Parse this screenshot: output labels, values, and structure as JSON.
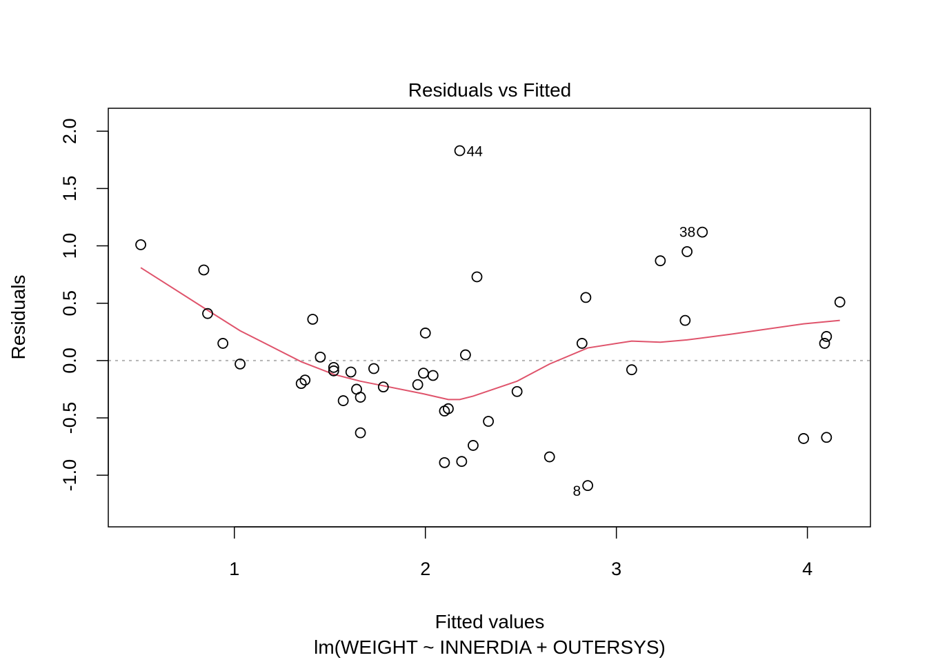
{
  "chart_data": {
    "type": "scatter",
    "title": "Residuals vs Fitted",
    "xlabel": "Fitted values",
    "subtitle": "lm(WEIGHT ~ INNERDIA + OUTERSYS)",
    "ylabel": "Residuals",
    "xlim": [
      0.34,
      4.33
    ],
    "ylim": [
      -1.45,
      2.2
    ],
    "xticks": [
      1,
      2,
      3,
      4
    ],
    "xtick_labels": [
      "1",
      "2",
      "3",
      "4"
    ],
    "yticks": [
      -1.0,
      -0.5,
      0.0,
      0.5,
      1.0,
      1.5,
      2.0
    ],
    "ytick_labels": [
      "-1.0",
      "-0.5",
      "0.0",
      "0.5",
      "1.0",
      "1.5",
      "2.0"
    ],
    "zero_line": 0,
    "points": [
      {
        "x": 0.51,
        "y": 1.01
      },
      {
        "x": 0.84,
        "y": 0.79
      },
      {
        "x": 0.86,
        "y": 0.41
      },
      {
        "x": 0.94,
        "y": 0.15
      },
      {
        "x": 1.03,
        "y": -0.03
      },
      {
        "x": 1.35,
        "y": -0.2
      },
      {
        "x": 1.37,
        "y": -0.17
      },
      {
        "x": 1.41,
        "y": 0.36
      },
      {
        "x": 1.45,
        "y": 0.03
      },
      {
        "x": 1.52,
        "y": -0.06
      },
      {
        "x": 1.52,
        "y": -0.09
      },
      {
        "x": 1.57,
        "y": -0.35
      },
      {
        "x": 1.61,
        "y": -0.1
      },
      {
        "x": 1.64,
        "y": -0.25
      },
      {
        "x": 1.66,
        "y": -0.32
      },
      {
        "x": 1.66,
        "y": -0.63
      },
      {
        "x": 1.73,
        "y": -0.07
      },
      {
        "x": 1.78,
        "y": -0.23
      },
      {
        "x": 1.96,
        "y": -0.21
      },
      {
        "x": 1.99,
        "y": -0.11
      },
      {
        "x": 2.0,
        "y": 0.24
      },
      {
        "x": 2.04,
        "y": -0.13
      },
      {
        "x": 2.1,
        "y": -0.44
      },
      {
        "x": 2.1,
        "y": -0.89
      },
      {
        "x": 2.12,
        "y": -0.42
      },
      {
        "x": 2.18,
        "y": 1.83,
        "label": "44"
      },
      {
        "x": 2.19,
        "y": -0.88
      },
      {
        "x": 2.21,
        "y": 0.05
      },
      {
        "x": 2.25,
        "y": -0.74
      },
      {
        "x": 2.27,
        "y": 0.73
      },
      {
        "x": 2.33,
        "y": -0.53
      },
      {
        "x": 2.48,
        "y": -0.27
      },
      {
        "x": 2.65,
        "y": -0.84
      },
      {
        "x": 2.82,
        "y": 0.15
      },
      {
        "x": 2.84,
        "y": 0.55
      },
      {
        "x": 2.85,
        "y": -1.09,
        "label": "8"
      },
      {
        "x": 3.08,
        "y": -0.08
      },
      {
        "x": 3.23,
        "y": 0.87
      },
      {
        "x": 3.36,
        "y": 0.35
      },
      {
        "x": 3.37,
        "y": 0.95
      },
      {
        "x": 3.45,
        "y": 1.12,
        "label": "38"
      },
      {
        "x": 3.98,
        "y": -0.68
      },
      {
        "x": 4.09,
        "y": 0.15
      },
      {
        "x": 4.1,
        "y": 0.21
      },
      {
        "x": 4.1,
        "y": -0.67
      },
      {
        "x": 4.17,
        "y": 0.51
      }
    ],
    "smoother": {
      "color": "#DF536B",
      "x": [
        0.51,
        0.84,
        1.03,
        1.35,
        1.52,
        1.66,
        1.78,
        1.99,
        2.12,
        2.18,
        2.25,
        2.48,
        2.65,
        2.85,
        3.08,
        3.23,
        3.37,
        3.6,
        3.98,
        4.17
      ],
      "y": [
        0.81,
        0.46,
        0.26,
        -0.01,
        -0.12,
        -0.18,
        -0.22,
        -0.29,
        -0.34,
        -0.34,
        -0.31,
        -0.18,
        -0.03,
        0.11,
        0.17,
        0.16,
        0.18,
        0.23,
        0.32,
        0.35
      ]
    },
    "grid": false,
    "legend": "none"
  }
}
